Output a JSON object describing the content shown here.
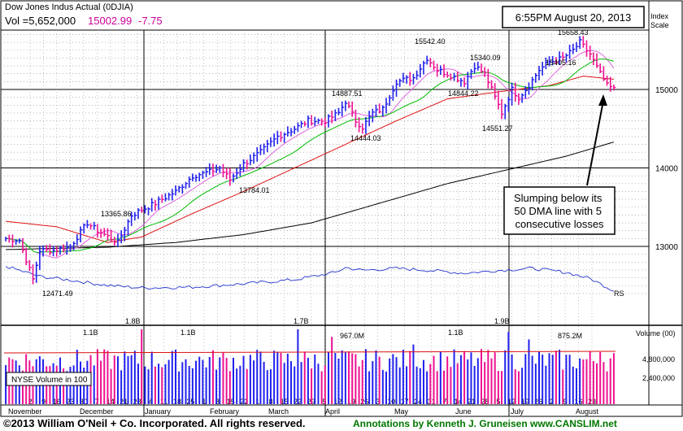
{
  "header": {
    "name": "Dow Jones Indus Actual  (0DJIA)",
    "vol_label": "Vol =5,652,000",
    "price": "15002.99",
    "change": "-7.75",
    "timestamp": "6:55PM August 20, 2013",
    "index_scale": "Index\nScale"
  },
  "annotation": {
    "lines": [
      "Slumping below its",
      "50 DMA line with 5",
      "consecutive losses"
    ]
  },
  "footer": {
    "copyright": "©2013 William O'Neil + Co. Incorporated. All rights reserved.",
    "annotations_by": "Annotations by Kenneth J. Gruneisen www.CANSLIM.net"
  },
  "volume_panel": {
    "label": "NYSE Volume in 100",
    "axis_title": "Volume (00)",
    "axis_ticks": [
      "4,800,000",
      "2,400,000"
    ]
  },
  "colors": {
    "up": "#2020ee",
    "down": "#ee1090",
    "dma50": "#dd1111",
    "dma200": "#000000",
    "ma10": "#dd66dd",
    "ma21": "#00bb00",
    "rs": "#2233cc",
    "title_pink": "#cc0099",
    "footer_green": "#007700"
  },
  "chart_data": {
    "type": "candlestick",
    "x_labels": [
      "2",
      "9",
      "16",
      "23",
      "30",
      "7",
      "14",
      "21",
      "28",
      "4",
      "11",
      "18",
      "25",
      "1",
      "8",
      "15",
      "22",
      "1",
      "8",
      "15",
      "22",
      "29",
      "5",
      "12",
      "19",
      "26",
      "3",
      "10",
      "17",
      "24",
      "31",
      "7",
      "14",
      "21",
      "28",
      "5",
      "12",
      "19",
      "26",
      "2",
      "9",
      "16",
      "23"
    ],
    "months": [
      "November",
      "December",
      "January",
      "February",
      "March",
      "April",
      "May",
      "June",
      "July",
      "August"
    ],
    "y_ticks": [
      13000,
      14000,
      15000
    ],
    "price_labels": [
      {
        "text": "12471.49",
        "value": 12471.49
      },
      {
        "text": "13365.86",
        "value": 13365.86
      },
      {
        "text": "13784.01",
        "value": 13784.01
      },
      {
        "text": "14887.51",
        "value": 14887.51
      },
      {
        "text": "14444.03",
        "value": 14444.03
      },
      {
        "text": "15542.40",
        "value": 15542.4
      },
      {
        "text": "15340.09",
        "value": 15340.09
      },
      {
        "text": "14844.22",
        "value": 14844.22
      },
      {
        "text": "14551.27",
        "value": 14551.27
      },
      {
        "text": "15658.43",
        "value": 15658.43
      },
      {
        "text": "15405.16",
        "value": 15405.16
      }
    ],
    "rs_label": "RS",
    "volume_labels": [
      "1.8B",
      "1.1B",
      "1.1B",
      "1.7B",
      "967.0M",
      "1.1B",
      "1.9B",
      "875.2M"
    ],
    "close_anchors": [
      [
        0,
        13100
      ],
      [
        4,
        13080
      ],
      [
        8,
        12580
      ],
      [
        10,
        12950
      ],
      [
        14,
        12950
      ],
      [
        19,
        13000
      ],
      [
        24,
        13300
      ],
      [
        27,
        13200
      ],
      [
        33,
        13050
      ],
      [
        37,
        13400
      ],
      [
        44,
        13550
      ],
      [
        50,
        13700
      ],
      [
        55,
        13900
      ],
      [
        60,
        13950
      ],
      [
        63,
        14000
      ],
      [
        66,
        13850
      ],
      [
        70,
        14050
      ],
      [
        75,
        14200
      ],
      [
        80,
        14400
      ],
      [
        85,
        14500
      ],
      [
        89,
        14600
      ],
      [
        94,
        14600
      ],
      [
        98,
        14700
      ],
      [
        100,
        14850
      ],
      [
        103,
        14600
      ],
      [
        105,
        14520
      ],
      [
        108,
        14700
      ],
      [
        111,
        14750
      ],
      [
        115,
        15100
      ],
      [
        120,
        15150
      ],
      [
        124,
        15400
      ],
      [
        127,
        15250
      ],
      [
        130,
        15200
      ],
      [
        135,
        15100
      ],
      [
        138,
        15300
      ],
      [
        141,
        15200
      ],
      [
        143,
        15000
      ],
      [
        146,
        14700
      ],
      [
        149,
        15000
      ],
      [
        151,
        14900
      ],
      [
        154,
        15050
      ],
      [
        157,
        15250
      ],
      [
        160,
        15350
      ],
      [
        164,
        15400
      ],
      [
        167,
        15500
      ],
      [
        169,
        15600
      ],
      [
        172,
        15450
      ],
      [
        175,
        15200
      ],
      [
        177,
        15050
      ],
      [
        179,
        15003
      ]
    ],
    "dma50_anchors": [
      [
        0,
        13320
      ],
      [
        15,
        13250
      ],
      [
        30,
        13050
      ],
      [
        40,
        13120
      ],
      [
        55,
        13420
      ],
      [
        70,
        13700
      ],
      [
        85,
        14000
      ],
      [
        100,
        14300
      ],
      [
        115,
        14600
      ],
      [
        130,
        14880
      ],
      [
        145,
        14970
      ],
      [
        160,
        15050
      ],
      [
        170,
        15170
      ],
      [
        179,
        15130
      ]
    ],
    "dma200_anchors": [
      [
        0,
        12960
      ],
      [
        30,
        12990
      ],
      [
        50,
        13050
      ],
      [
        70,
        13150
      ],
      [
        90,
        13300
      ],
      [
        110,
        13550
      ],
      [
        130,
        13800
      ],
      [
        150,
        14000
      ],
      [
        165,
        14150
      ],
      [
        179,
        14330
      ]
    ],
    "rs_anchors": [
      [
        0,
        0.65
      ],
      [
        10,
        0.4
      ],
      [
        20,
        0.3
      ],
      [
        30,
        0.18
      ],
      [
        40,
        0.12
      ],
      [
        55,
        0.14
      ],
      [
        70,
        0.22
      ],
      [
        85,
        0.32
      ],
      [
        97,
        0.5
      ],
      [
        100,
        0.62
      ],
      [
        105,
        0.55
      ],
      [
        115,
        0.6
      ],
      [
        125,
        0.55
      ],
      [
        135,
        0.48
      ],
      [
        145,
        0.55
      ],
      [
        155,
        0.6
      ],
      [
        165,
        0.5
      ],
      [
        172,
        0.35
      ],
      [
        179,
        0.05
      ]
    ]
  }
}
